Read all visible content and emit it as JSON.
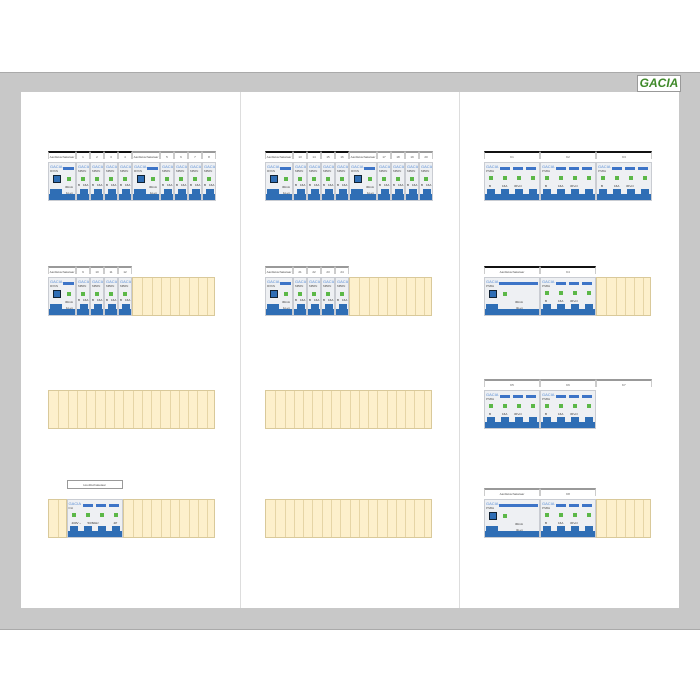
{
  "brand": "GACIA",
  "colors": {
    "frame": "#c8c8c8",
    "module_blue": "#2f6eb5",
    "led_green": "#5cb848",
    "empty_slot": "#fdf0cc",
    "logo_green": "#3f8a2a"
  },
  "columns": [
    {
      "rails": [
        {
          "groups": [
            {
              "label": "Aardlekschakelaar",
              "modules": [
                "rcd"
              ]
            },
            {
              "label": "1",
              "modules": [
                "mcb"
              ]
            },
            {
              "label": "2",
              "modules": [
                "mcb"
              ]
            },
            {
              "label": "3",
              "modules": [
                "mcb"
              ]
            },
            {
              "label": "4",
              "modules": [
                "mcb"
              ]
            },
            {
              "label": "Aardlekschakelaar",
              "modules": [
                "rcd"
              ],
              "gray": true
            },
            {
              "label": "5",
              "modules": [
                "mcb"
              ],
              "gray": true
            },
            {
              "label": "6",
              "modules": [
                "mcb"
              ],
              "gray": true
            },
            {
              "label": "7",
              "modules": [
                "mcb"
              ],
              "gray": true
            },
            {
              "label": "8",
              "modules": [
                "mcb"
              ],
              "gray": true
            }
          ]
        },
        {
          "groups": [
            {
              "label": "Aardlekschakelaar",
              "modules": [
                "rcd"
              ],
              "gray": true
            },
            {
              "label": "9",
              "modules": [
                "mcb"
              ],
              "gray": true
            },
            {
              "label": "10",
              "modules": [
                "mcb"
              ],
              "gray": true
            },
            {
              "label": "11",
              "modules": [
                "mcb"
              ],
              "gray": true
            },
            {
              "label": "12",
              "modules": [
                "mcb"
              ],
              "gray": true
            }
          ]
        },
        {
          "groups": []
        },
        {
          "groups": [
            {
              "label": "Hoofdschakelaar",
              "modules": [
                "main"
              ],
              "boxed": true
            }
          ],
          "offset": 2
        }
      ]
    },
    {
      "rails": [
        {
          "groups": [
            {
              "label": "Aardlekschakelaar",
              "modules": [
                "rcd"
              ]
            },
            {
              "label": "13",
              "modules": [
                "mcb"
              ]
            },
            {
              "label": "14",
              "modules": [
                "mcb"
              ]
            },
            {
              "label": "15",
              "modules": [
                "mcb"
              ]
            },
            {
              "label": "16",
              "modules": [
                "mcb"
              ]
            },
            {
              "label": "Aardlekschakelaar",
              "modules": [
                "rcd"
              ],
              "gray": true
            },
            {
              "label": "17",
              "modules": [
                "mcb"
              ],
              "gray": true
            },
            {
              "label": "18",
              "modules": [
                "mcb"
              ],
              "gray": true
            },
            {
              "label": "19",
              "modules": [
                "mcb"
              ],
              "gray": true
            },
            {
              "label": "20",
              "modules": [
                "mcb"
              ],
              "gray": true
            }
          ]
        },
        {
          "groups": [
            {
              "label": "Aardlekschakelaar",
              "modules": [
                "rcd"
              ],
              "gray": true
            },
            {
              "label": "21",
              "modules": [
                "mcb"
              ],
              "gray": true
            },
            {
              "label": "22",
              "modules": [
                "mcb"
              ],
              "gray": true
            },
            {
              "label": "23",
              "modules": [
                "mcb"
              ],
              "gray": true
            },
            {
              "label": "24",
              "modules": [
                "mcb"
              ],
              "gray": true
            }
          ]
        },
        {
          "groups": []
        },
        {
          "groups": []
        }
      ]
    },
    {
      "rails": [
        {
          "groups": [
            {
              "label": "K1",
              "modules": [
                "rcbo4"
              ]
            },
            {
              "label": "K2",
              "modules": [
                "rcbo4"
              ]
            },
            {
              "label": "K3",
              "modules": [
                "rcbo4"
              ]
            }
          ]
        },
        {
          "groups": [
            {
              "label": "Aardlekschakelaar",
              "modules": [
                "rcd4"
              ]
            },
            {
              "label": "K4",
              "modules": [
                "rcbo4"
              ]
            }
          ]
        },
        {
          "groups": [
            {
              "label": "K5",
              "modules": [
                "rcbo4"
              ],
              "gray": true
            },
            {
              "label": "K6",
              "modules": [
                "rcbo4"
              ],
              "gray": true
            },
            {
              "label": "K7",
              "modules": [],
              "gray": true,
              "width_slots": 6
            }
          ]
        },
        {
          "groups": [
            {
              "label": "Aardlekschakelaar",
              "modules": [
                "rcd4"
              ],
              "gray": true
            },
            {
              "label": "K8",
              "modules": [
                "rcbo4"
              ],
              "gray": true
            }
          ]
        }
      ]
    }
  ],
  "module_text": {
    "rcd": {
      "type": "RX6N",
      "rating": "30mA",
      "poles": "1p+n"
    },
    "mcb": {
      "type": "MB6N",
      "curve": "B",
      "rating": "16A",
      "poles": "1p+n"
    },
    "rcbo4": {
      "type": "PSBH",
      "curve": "B",
      "rating": "16A",
      "poles": "3P+N"
    },
    "rcd4": {
      "type": "PSBH",
      "rating": "30mA",
      "poles": "3p+n"
    },
    "main": {
      "type": "DH",
      "voltage": "400V ~",
      "freq": "50/60Hz",
      "poles": "4P"
    }
  }
}
